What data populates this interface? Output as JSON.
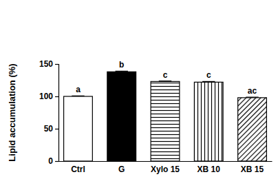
{
  "chart_data": {
    "type": "bar",
    "y_label": "Lipid accumulation (%)",
    "categories": [
      "Ctrl",
      "G",
      "Xylo 15",
      "XB 10",
      "XB 15"
    ],
    "values": [
      100,
      138,
      123,
      122,
      98
    ],
    "errors": [
      0.8,
      1,
      0.8,
      1,
      0.8
    ],
    "annotations": [
      "a",
      "b",
      "c",
      "c",
      "ac"
    ],
    "colors": [
      "#ffffff",
      "#000000",
      "#ffffff",
      "#ffffff",
      "#ffffff"
    ],
    "ylim": [
      0,
      150
    ],
    "yticks": [
      0,
      50,
      100,
      150
    ],
    "grid": false
  }
}
